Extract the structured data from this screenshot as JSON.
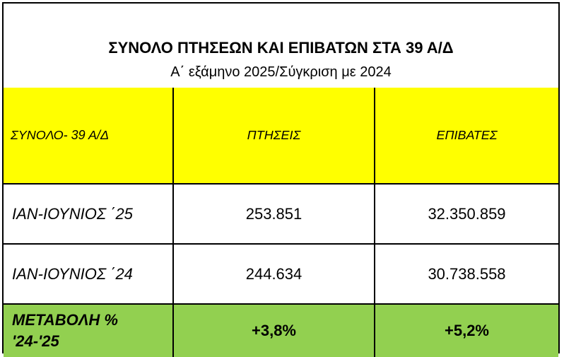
{
  "title": {
    "main": "ΣΥΝΟΛΟ ΠΤΗΣΕΩΝ ΚΑΙ ΕΠΙΒΑΤΩΝ ΣΤΑ 39 Α/Δ",
    "subtitle": "Α΄ εξάμηνο 2025/Σύγκριση με 2024"
  },
  "table": {
    "headers": [
      "ΣΥΝΟΛΟ- 39 Α/Δ",
      "ΠΤΗΣΕΙΣ",
      "ΕΠΙΒΑΤΕΣ"
    ],
    "rows": [
      {
        "label": "ΙΑΝ-ΙΟΥΝΙΟΣ ΄25",
        "flights": "253.851",
        "passengers": "32.350.859"
      },
      {
        "label": "ΙΑΝ-ΙΟΥΝΙΟΣ ΄24",
        "flights": "244.634",
        "passengers": "30.738.558"
      }
    ],
    "change": {
      "label_line1": "ΜΕΤΑΒΟΛΗ %",
      "label_line2": "'24-'25",
      "flights": "+3,8%",
      "passengers": "+5,2%"
    }
  },
  "colors": {
    "header_bg": "#ffff00",
    "change_bg": "#92d050"
  }
}
